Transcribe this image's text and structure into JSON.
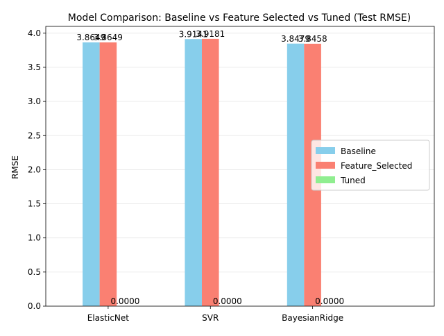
{
  "chart_data": {
    "type": "bar",
    "title": "Model Comparison: Baseline vs Feature Selected vs Tuned (Test RMSE)",
    "xlabel": "",
    "ylabel": "RMSE",
    "categories": [
      "ElasticNet",
      "SVR",
      "BayesianRidge"
    ],
    "series": [
      {
        "name": "Baseline",
        "values": [
          3.8649,
          3.9141,
          3.8479
        ],
        "labels": [
          "3.8649",
          "3.9141",
          "3.8479"
        ],
        "color": "#87ceeb"
      },
      {
        "name": "Feature_Selected",
        "values": [
          3.8649,
          3.9181,
          3.8458
        ],
        "labels": [
          "3.8649",
          "3.9181",
          "3.8458"
        ],
        "color": "#fa8072"
      },
      {
        "name": "Tuned",
        "values": [
          0,
          0,
          0
        ],
        "labels": [
          "0.0000",
          "0.0000",
          "0.0000"
        ],
        "color": "#90ee90"
      }
    ],
    "ylim": [
      0,
      4.1
    ],
    "yticks": [
      "0.0",
      "0.5",
      "1.0",
      "1.5",
      "2.0",
      "2.5",
      "3.0",
      "3.5",
      "4.0"
    ],
    "grid": "y",
    "legend_position": "center-right"
  }
}
